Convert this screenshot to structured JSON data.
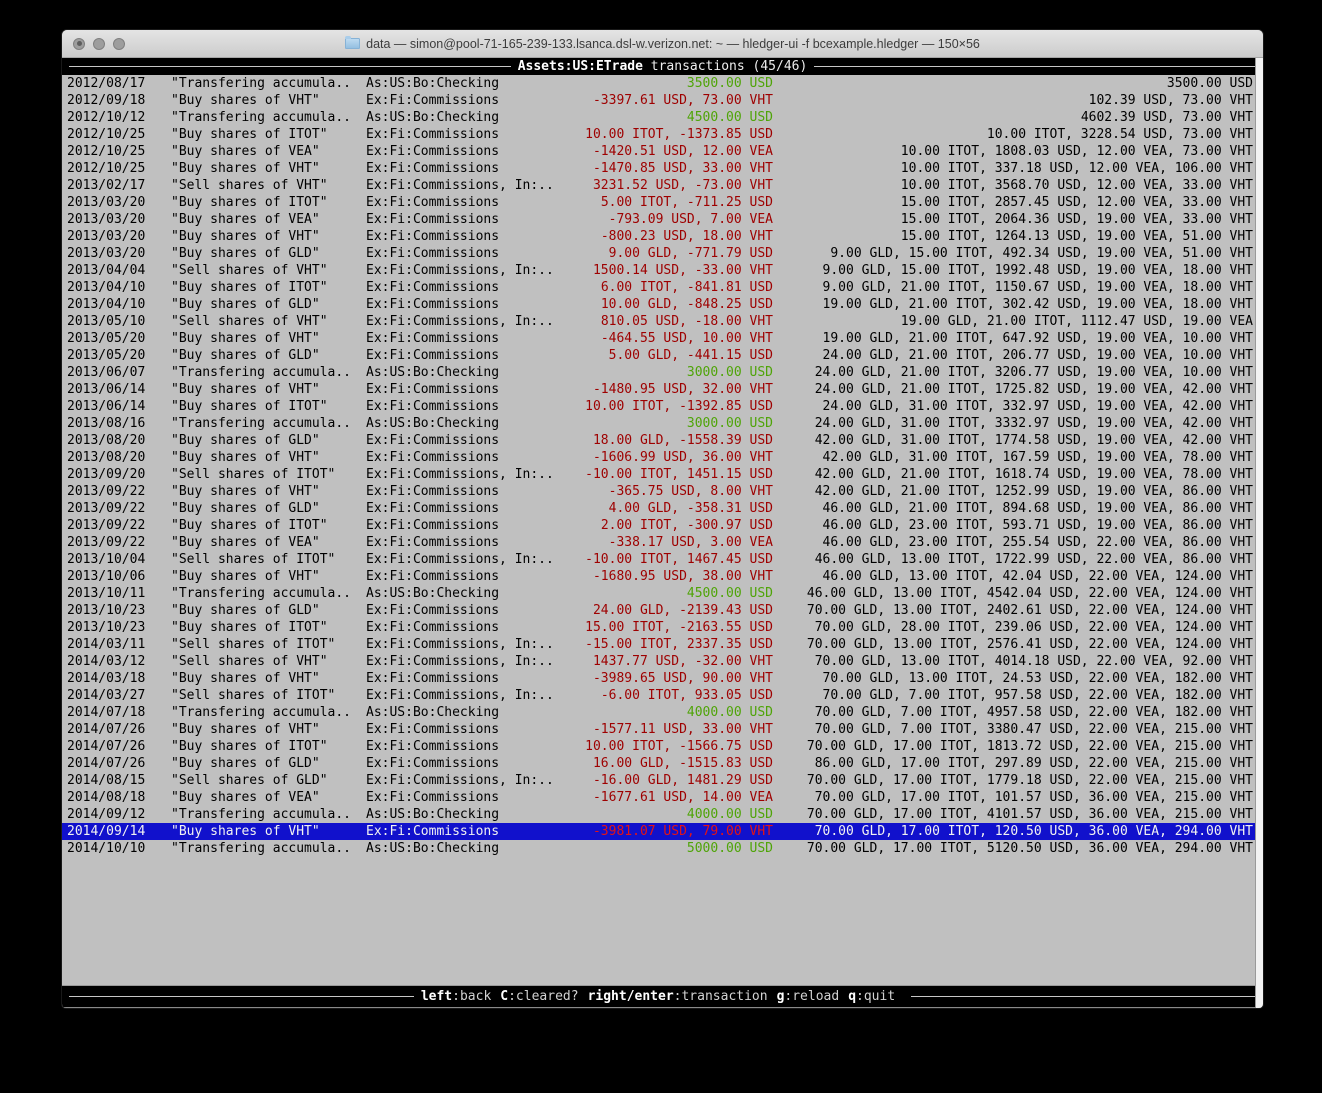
{
  "window": {
    "title": "data — simon@pool-71-165-239-133.lsanca.dsl-w.verizon.net: ~ — hledger-ui -f bcexample.hledger — 150×56"
  },
  "header": {
    "account": "Assets:US:ETrade",
    "rest": " transactions (45/46)"
  },
  "footer": {
    "keys": [
      {
        "key": "left",
        "desc": ":back"
      },
      {
        "key": "C",
        "desc": ":cleared?"
      },
      {
        "key": "right/enter",
        "desc": ":transaction"
      },
      {
        "key": "g",
        "desc": ":reload"
      },
      {
        "key": "q",
        "desc": ":quit"
      }
    ]
  },
  "colors": {
    "terminal_bg": "#c0c0c0",
    "bar_bg": "#000000",
    "text": "#000000",
    "negative_amount": "#9e0000",
    "positive_amount": "#4fa408",
    "selection_bg": "#1111cc",
    "selection_text": "#f2f2f2",
    "selection_negative": "#e41414"
  },
  "transactions": [
    {
      "date": "2012/08/17",
      "desc": "\"Transfering accumula..",
      "account": "As:US:Bo:Checking",
      "change": "3500.00 USD",
      "change_color": "green",
      "balance": "3500.00 USD",
      "selected": false
    },
    {
      "date": "2012/09/18",
      "desc": "\"Buy shares of VHT\"",
      "account": "Ex:Fi:Commissions",
      "change": "-3397.61 USD, 73.00 VHT",
      "change_color": "red",
      "balance": "102.39 USD, 73.00 VHT",
      "selected": false
    },
    {
      "date": "2012/10/12",
      "desc": "\"Transfering accumula..",
      "account": "As:US:Bo:Checking",
      "change": "4500.00 USD",
      "change_color": "green",
      "balance": "4602.39 USD, 73.00 VHT",
      "selected": false
    },
    {
      "date": "2012/10/25",
      "desc": "\"Buy shares of ITOT\"",
      "account": "Ex:Fi:Commissions",
      "change": "10.00 ITOT, -1373.85 USD",
      "change_color": "red",
      "balance": "10.00 ITOT, 3228.54 USD, 73.00 VHT",
      "selected": false
    },
    {
      "date": "2012/10/25",
      "desc": "\"Buy shares of VEA\"",
      "account": "Ex:Fi:Commissions",
      "change": "-1420.51 USD, 12.00 VEA",
      "change_color": "red",
      "balance": "10.00 ITOT, 1808.03 USD, 12.00 VEA, 73.00 VHT",
      "selected": false
    },
    {
      "date": "2012/10/25",
      "desc": "\"Buy shares of VHT\"",
      "account": "Ex:Fi:Commissions",
      "change": "-1470.85 USD, 33.00 VHT",
      "change_color": "red",
      "balance": "10.00 ITOT, 337.18 USD, 12.00 VEA, 106.00 VHT",
      "selected": false
    },
    {
      "date": "2013/02/17",
      "desc": "\"Sell shares of VHT\"",
      "account": "Ex:Fi:Commissions, In:..",
      "change": "3231.52 USD, -73.00 VHT",
      "change_color": "red",
      "balance": "10.00 ITOT, 3568.70 USD, 12.00 VEA, 33.00 VHT",
      "selected": false
    },
    {
      "date": "2013/03/20",
      "desc": "\"Buy shares of ITOT\"",
      "account": "Ex:Fi:Commissions",
      "change": "5.00 ITOT, -711.25 USD",
      "change_color": "red",
      "balance": "15.00 ITOT, 2857.45 USD, 12.00 VEA, 33.00 VHT",
      "selected": false
    },
    {
      "date": "2013/03/20",
      "desc": "\"Buy shares of VEA\"",
      "account": "Ex:Fi:Commissions",
      "change": "-793.09 USD, 7.00 VEA",
      "change_color": "red",
      "balance": "15.00 ITOT, 2064.36 USD, 19.00 VEA, 33.00 VHT",
      "selected": false
    },
    {
      "date": "2013/03/20",
      "desc": "\"Buy shares of VHT\"",
      "account": "Ex:Fi:Commissions",
      "change": "-800.23 USD, 18.00 VHT",
      "change_color": "red",
      "balance": "15.00 ITOT, 1264.13 USD, 19.00 VEA, 51.00 VHT",
      "selected": false
    },
    {
      "date": "2013/03/20",
      "desc": "\"Buy shares of GLD\"",
      "account": "Ex:Fi:Commissions",
      "change": "9.00 GLD, -771.79 USD",
      "change_color": "red",
      "balance": "9.00 GLD, 15.00 ITOT, 492.34 USD, 19.00 VEA, 51.00 VHT",
      "selected": false
    },
    {
      "date": "2013/04/04",
      "desc": "\"Sell shares of VHT\"",
      "account": "Ex:Fi:Commissions, In:..",
      "change": "1500.14 USD, -33.00 VHT",
      "change_color": "red",
      "balance": "9.00 GLD, 15.00 ITOT, 1992.48 USD, 19.00 VEA, 18.00 VHT",
      "selected": false
    },
    {
      "date": "2013/04/10",
      "desc": "\"Buy shares of ITOT\"",
      "account": "Ex:Fi:Commissions",
      "change": "6.00 ITOT, -841.81 USD",
      "change_color": "red",
      "balance": "9.00 GLD, 21.00 ITOT, 1150.67 USD, 19.00 VEA, 18.00 VHT",
      "selected": false
    },
    {
      "date": "2013/04/10",
      "desc": "\"Buy shares of GLD\"",
      "account": "Ex:Fi:Commissions",
      "change": "10.00 GLD, -848.25 USD",
      "change_color": "red",
      "balance": "19.00 GLD, 21.00 ITOT, 302.42 USD, 19.00 VEA, 18.00 VHT",
      "selected": false
    },
    {
      "date": "2013/05/10",
      "desc": "\"Sell shares of VHT\"",
      "account": "Ex:Fi:Commissions, In:..",
      "change": "810.05 USD, -18.00 VHT",
      "change_color": "red",
      "balance": "19.00 GLD, 21.00 ITOT, 1112.47 USD, 19.00 VEA",
      "selected": false
    },
    {
      "date": "2013/05/20",
      "desc": "\"Buy shares of VHT\"",
      "account": "Ex:Fi:Commissions",
      "change": "-464.55 USD, 10.00 VHT",
      "change_color": "red",
      "balance": "19.00 GLD, 21.00 ITOT, 647.92 USD, 19.00 VEA, 10.00 VHT",
      "selected": false
    },
    {
      "date": "2013/05/20",
      "desc": "\"Buy shares of GLD\"",
      "account": "Ex:Fi:Commissions",
      "change": "5.00 GLD, -441.15 USD",
      "change_color": "red",
      "balance": "24.00 GLD, 21.00 ITOT, 206.77 USD, 19.00 VEA, 10.00 VHT",
      "selected": false
    },
    {
      "date": "2013/06/07",
      "desc": "\"Transfering accumula..",
      "account": "As:US:Bo:Checking",
      "change": "3000.00 USD",
      "change_color": "green",
      "balance": "24.00 GLD, 21.00 ITOT, 3206.77 USD, 19.00 VEA, 10.00 VHT",
      "selected": false
    },
    {
      "date": "2013/06/14",
      "desc": "\"Buy shares of VHT\"",
      "account": "Ex:Fi:Commissions",
      "change": "-1480.95 USD, 32.00 VHT",
      "change_color": "red",
      "balance": "24.00 GLD, 21.00 ITOT, 1725.82 USD, 19.00 VEA, 42.00 VHT",
      "selected": false
    },
    {
      "date": "2013/06/14",
      "desc": "\"Buy shares of ITOT\"",
      "account": "Ex:Fi:Commissions",
      "change": "10.00 ITOT, -1392.85 USD",
      "change_color": "red",
      "balance": "24.00 GLD, 31.00 ITOT, 332.97 USD, 19.00 VEA, 42.00 VHT",
      "selected": false
    },
    {
      "date": "2013/08/16",
      "desc": "\"Transfering accumula..",
      "account": "As:US:Bo:Checking",
      "change": "3000.00 USD",
      "change_color": "green",
      "balance": "24.00 GLD, 31.00 ITOT, 3332.97 USD, 19.00 VEA, 42.00 VHT",
      "selected": false
    },
    {
      "date": "2013/08/20",
      "desc": "\"Buy shares of GLD\"",
      "account": "Ex:Fi:Commissions",
      "change": "18.00 GLD, -1558.39 USD",
      "change_color": "red",
      "balance": "42.00 GLD, 31.00 ITOT, 1774.58 USD, 19.00 VEA, 42.00 VHT",
      "selected": false
    },
    {
      "date": "2013/08/20",
      "desc": "\"Buy shares of VHT\"",
      "account": "Ex:Fi:Commissions",
      "change": "-1606.99 USD, 36.00 VHT",
      "change_color": "red",
      "balance": "42.00 GLD, 31.00 ITOT, 167.59 USD, 19.00 VEA, 78.00 VHT",
      "selected": false
    },
    {
      "date": "2013/09/20",
      "desc": "\"Sell shares of ITOT\"",
      "account": "Ex:Fi:Commissions, In:..",
      "change": "-10.00 ITOT, 1451.15 USD",
      "change_color": "red",
      "balance": "42.00 GLD, 21.00 ITOT, 1618.74 USD, 19.00 VEA, 78.00 VHT",
      "selected": false
    },
    {
      "date": "2013/09/22",
      "desc": "\"Buy shares of VHT\"",
      "account": "Ex:Fi:Commissions",
      "change": "-365.75 USD, 8.00 VHT",
      "change_color": "red",
      "balance": "42.00 GLD, 21.00 ITOT, 1252.99 USD, 19.00 VEA, 86.00 VHT",
      "selected": false
    },
    {
      "date": "2013/09/22",
      "desc": "\"Buy shares of GLD\"",
      "account": "Ex:Fi:Commissions",
      "change": "4.00 GLD, -358.31 USD",
      "change_color": "red",
      "balance": "46.00 GLD, 21.00 ITOT, 894.68 USD, 19.00 VEA, 86.00 VHT",
      "selected": false
    },
    {
      "date": "2013/09/22",
      "desc": "\"Buy shares of ITOT\"",
      "account": "Ex:Fi:Commissions",
      "change": "2.00 ITOT, -300.97 USD",
      "change_color": "red",
      "balance": "46.00 GLD, 23.00 ITOT, 593.71 USD, 19.00 VEA, 86.00 VHT",
      "selected": false
    },
    {
      "date": "2013/09/22",
      "desc": "\"Buy shares of VEA\"",
      "account": "Ex:Fi:Commissions",
      "change": "-338.17 USD, 3.00 VEA",
      "change_color": "red",
      "balance": "46.00 GLD, 23.00 ITOT, 255.54 USD, 22.00 VEA, 86.00 VHT",
      "selected": false
    },
    {
      "date": "2013/10/04",
      "desc": "\"Sell shares of ITOT\"",
      "account": "Ex:Fi:Commissions, In:..",
      "change": "-10.00 ITOT, 1467.45 USD",
      "change_color": "red",
      "balance": "46.00 GLD, 13.00 ITOT, 1722.99 USD, 22.00 VEA, 86.00 VHT",
      "selected": false
    },
    {
      "date": "2013/10/06",
      "desc": "\"Buy shares of VHT\"",
      "account": "Ex:Fi:Commissions",
      "change": "-1680.95 USD, 38.00 VHT",
      "change_color": "red",
      "balance": "46.00 GLD, 13.00 ITOT, 42.04 USD, 22.00 VEA, 124.00 VHT",
      "selected": false
    },
    {
      "date": "2013/10/11",
      "desc": "\"Transfering accumula..",
      "account": "As:US:Bo:Checking",
      "change": "4500.00 USD",
      "change_color": "green",
      "balance": "46.00 GLD, 13.00 ITOT, 4542.04 USD, 22.00 VEA, 124.00 VHT",
      "selected": false
    },
    {
      "date": "2013/10/23",
      "desc": "\"Buy shares of GLD\"",
      "account": "Ex:Fi:Commissions",
      "change": "24.00 GLD, -2139.43 USD",
      "change_color": "red",
      "balance": "70.00 GLD, 13.00 ITOT, 2402.61 USD, 22.00 VEA, 124.00 VHT",
      "selected": false
    },
    {
      "date": "2013/10/23",
      "desc": "\"Buy shares of ITOT\"",
      "account": "Ex:Fi:Commissions",
      "change": "15.00 ITOT, -2163.55 USD",
      "change_color": "red",
      "balance": "70.00 GLD, 28.00 ITOT, 239.06 USD, 22.00 VEA, 124.00 VHT",
      "selected": false
    },
    {
      "date": "2014/03/11",
      "desc": "\"Sell shares of ITOT\"",
      "account": "Ex:Fi:Commissions, In:..",
      "change": "-15.00 ITOT, 2337.35 USD",
      "change_color": "red",
      "balance": "70.00 GLD, 13.00 ITOT, 2576.41 USD, 22.00 VEA, 124.00 VHT",
      "selected": false
    },
    {
      "date": "2014/03/12",
      "desc": "\"Sell shares of VHT\"",
      "account": "Ex:Fi:Commissions, In:..",
      "change": "1437.77 USD, -32.00 VHT",
      "change_color": "red",
      "balance": "70.00 GLD, 13.00 ITOT, 4014.18 USD, 22.00 VEA, 92.00 VHT",
      "selected": false
    },
    {
      "date": "2014/03/18",
      "desc": "\"Buy shares of VHT\"",
      "account": "Ex:Fi:Commissions",
      "change": "-3989.65 USD, 90.00 VHT",
      "change_color": "red",
      "balance": "70.00 GLD, 13.00 ITOT, 24.53 USD, 22.00 VEA, 182.00 VHT",
      "selected": false
    },
    {
      "date": "2014/03/27",
      "desc": "\"Sell shares of ITOT\"",
      "account": "Ex:Fi:Commissions, In:..",
      "change": "-6.00 ITOT, 933.05 USD",
      "change_color": "red",
      "balance": "70.00 GLD, 7.00 ITOT, 957.58 USD, 22.00 VEA, 182.00 VHT",
      "selected": false
    },
    {
      "date": "2014/07/18",
      "desc": "\"Transfering accumula..",
      "account": "As:US:Bo:Checking",
      "change": "4000.00 USD",
      "change_color": "green",
      "balance": "70.00 GLD, 7.00 ITOT, 4957.58 USD, 22.00 VEA, 182.00 VHT",
      "selected": false
    },
    {
      "date": "2014/07/26",
      "desc": "\"Buy shares of VHT\"",
      "account": "Ex:Fi:Commissions",
      "change": "-1577.11 USD, 33.00 VHT",
      "change_color": "red",
      "balance": "70.00 GLD, 7.00 ITOT, 3380.47 USD, 22.00 VEA, 215.00 VHT",
      "selected": false
    },
    {
      "date": "2014/07/26",
      "desc": "\"Buy shares of ITOT\"",
      "account": "Ex:Fi:Commissions",
      "change": "10.00 ITOT, -1566.75 USD",
      "change_color": "red",
      "balance": "70.00 GLD, 17.00 ITOT, 1813.72 USD, 22.00 VEA, 215.00 VHT",
      "selected": false
    },
    {
      "date": "2014/07/26",
      "desc": "\"Buy shares of GLD\"",
      "account": "Ex:Fi:Commissions",
      "change": "16.00 GLD, -1515.83 USD",
      "change_color": "red",
      "balance": "86.00 GLD, 17.00 ITOT, 297.89 USD, 22.00 VEA, 215.00 VHT",
      "selected": false
    },
    {
      "date": "2014/08/15",
      "desc": "\"Sell shares of GLD\"",
      "account": "Ex:Fi:Commissions, In:..",
      "change": "-16.00 GLD, 1481.29 USD",
      "change_color": "red",
      "balance": "70.00 GLD, 17.00 ITOT, 1779.18 USD, 22.00 VEA, 215.00 VHT",
      "selected": false
    },
    {
      "date": "2014/08/18",
      "desc": "\"Buy shares of VEA\"",
      "account": "Ex:Fi:Commissions",
      "change": "-1677.61 USD, 14.00 VEA",
      "change_color": "red",
      "balance": "70.00 GLD, 17.00 ITOT, 101.57 USD, 36.00 VEA, 215.00 VHT",
      "selected": false
    },
    {
      "date": "2014/09/12",
      "desc": "\"Transfering accumula..",
      "account": "As:US:Bo:Checking",
      "change": "4000.00 USD",
      "change_color": "green",
      "balance": "70.00 GLD, 17.00 ITOT, 4101.57 USD, 36.00 VEA, 215.00 VHT",
      "selected": false
    },
    {
      "date": "2014/09/14",
      "desc": "\"Buy shares of VHT\"",
      "account": "Ex:Fi:Commissions",
      "change": "-3981.07 USD, 79.00 VHT",
      "change_color": "red",
      "balance": "70.00 GLD, 17.00 ITOT, 120.50 USD, 36.00 VEA, 294.00 VHT",
      "selected": true
    },
    {
      "date": "2014/10/10",
      "desc": "\"Transfering accumula..",
      "account": "As:US:Bo:Checking",
      "change": "5000.00 USD",
      "change_color": "green",
      "balance": "70.00 GLD, 17.00 ITOT, 5120.50 USD, 36.00 VEA, 294.00 VHT",
      "selected": false
    }
  ]
}
